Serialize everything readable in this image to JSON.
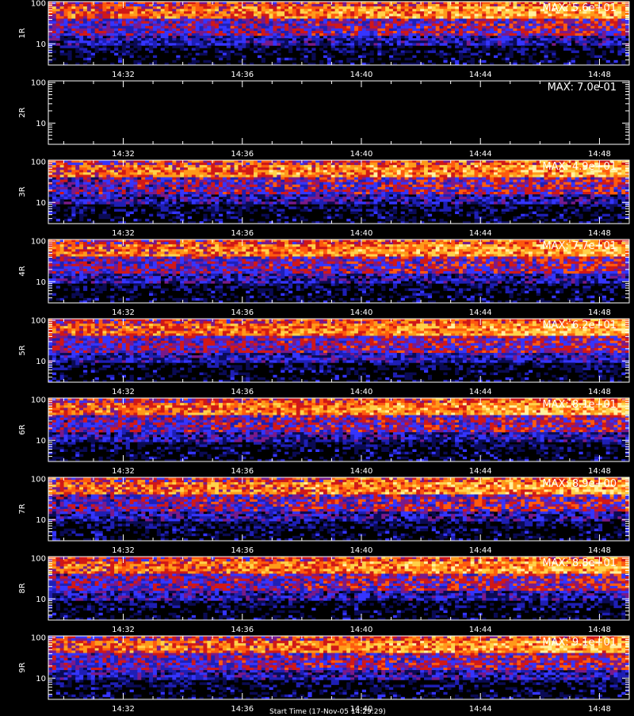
{
  "colors": {
    "background": "#000000",
    "axis": "#ffffff",
    "colormap": [
      "#000000",
      "#0b0b55",
      "#1f1fb5",
      "#3535ff",
      "#7a1a8a",
      "#d01818",
      "#ff5a0f",
      "#ff9a1a",
      "#ffd24a",
      "#fff2a0"
    ]
  },
  "start_time_label": "Start Time (17-Nov-05 14:29:29)",
  "chart_data": [
    {
      "type": "heatmap",
      "ylabel": "1R",
      "max_label": "MAX: 5.6e+01",
      "max_value": 56,
      "activity": 0.55,
      "yscale": "log",
      "ylim": [
        3,
        110
      ],
      "y_ticks": [
        "10",
        "100"
      ],
      "x_ticks": [
        "14:32",
        "14:36",
        "14:40",
        "14:44",
        "14:48"
      ],
      "xlim": [
        "14:29:29",
        "14:49:00"
      ]
    },
    {
      "type": "heatmap",
      "ylabel": "2R",
      "max_label": "MAX: 7.0e-01",
      "max_value": 0.7,
      "activity": 0.0,
      "yscale": "log",
      "ylim": [
        3,
        110
      ],
      "y_ticks": [
        "10",
        "100"
      ],
      "x_ticks": [
        "14:32",
        "14:36",
        "14:40",
        "14:44",
        "14:48"
      ],
      "xlim": [
        "14:29:29",
        "14:49:00"
      ]
    },
    {
      "type": "heatmap",
      "ylabel": "3R",
      "max_label": "MAX: 4.9e+01",
      "max_value": 49,
      "activity": 0.6,
      "yscale": "log",
      "ylim": [
        3,
        110
      ],
      "y_ticks": [
        "10",
        "100"
      ],
      "x_ticks": [
        "14:32",
        "14:36",
        "14:40",
        "14:44",
        "14:48"
      ],
      "xlim": [
        "14:29:29",
        "14:49:00"
      ]
    },
    {
      "type": "heatmap",
      "ylabel": "4R",
      "max_label": "MAX: 7.7e+01",
      "max_value": 77,
      "activity": 0.55,
      "yscale": "log",
      "ylim": [
        3,
        110
      ],
      "y_ticks": [
        "10",
        "100"
      ],
      "x_ticks": [
        "14:32",
        "14:36",
        "14:40",
        "14:44",
        "14:48"
      ],
      "xlim": [
        "14:29:29",
        "14:49:00"
      ]
    },
    {
      "type": "heatmap",
      "ylabel": "5R",
      "max_label": "MAX: 6.2e+01",
      "max_value": 62,
      "activity": 0.5,
      "yscale": "log",
      "ylim": [
        3,
        110
      ],
      "y_ticks": [
        "10",
        "100"
      ],
      "x_ticks": [
        "14:32",
        "14:36",
        "14:40",
        "14:44",
        "14:48"
      ],
      "xlim": [
        "14:29:29",
        "14:49:00"
      ]
    },
    {
      "type": "heatmap",
      "ylabel": "6R",
      "max_label": "MAX: 8.1e+01",
      "max_value": 81,
      "activity": 0.55,
      "yscale": "log",
      "ylim": [
        3,
        110
      ],
      "y_ticks": [
        "10",
        "100"
      ],
      "x_ticks": [
        "14:32",
        "14:36",
        "14:40",
        "14:44",
        "14:48"
      ],
      "xlim": [
        "14:29:29",
        "14:49:00"
      ]
    },
    {
      "type": "heatmap",
      "ylabel": "7R",
      "max_label": "MAX: 8.9e+00",
      "max_value": 8.9,
      "activity": 0.6,
      "yscale": "log",
      "ylim": [
        3,
        110
      ],
      "y_ticks": [
        "10",
        "100"
      ],
      "x_ticks": [
        "14:32",
        "14:36",
        "14:40",
        "14:44",
        "14:48"
      ],
      "xlim": [
        "14:29:29",
        "14:49:00"
      ]
    },
    {
      "type": "heatmap",
      "ylabel": "8R",
      "max_label": "MAX: 8.8e+01",
      "max_value": 88,
      "activity": 0.55,
      "yscale": "log",
      "ylim": [
        3,
        110
      ],
      "y_ticks": [
        "10",
        "100"
      ],
      "x_ticks": [
        "14:32",
        "14:36",
        "14:40",
        "14:44",
        "14:48"
      ],
      "xlim": [
        "14:29:29",
        "14:49:00"
      ]
    },
    {
      "type": "heatmap",
      "ylabel": "9R",
      "max_label": "MAX: 9.1e+01",
      "max_value": 91,
      "activity": 0.55,
      "yscale": "log",
      "ylim": [
        3,
        110
      ],
      "y_ticks": [
        "10",
        "100"
      ],
      "x_ticks": [
        "14:32",
        "14:36",
        "14:40",
        "14:44",
        "14:48"
      ],
      "xlim": [
        "14:29:29",
        "14:49:00"
      ]
    }
  ]
}
